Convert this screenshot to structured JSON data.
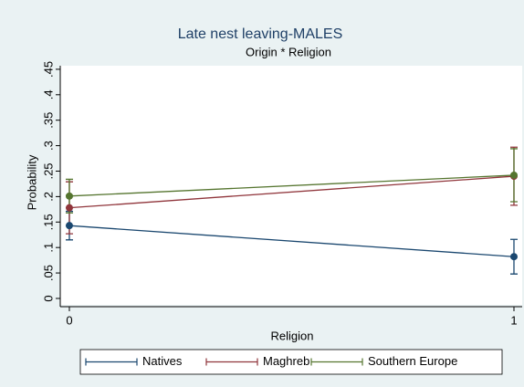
{
  "chart_data": {
    "type": "line-errorbar",
    "title": "Late nest leaving-MALES",
    "subtitle": "Origin * Religion",
    "x_label": "Religion",
    "y_label": "Probability",
    "x": [
      0,
      1
    ],
    "xlim": [
      -0.0205,
      1.0185
    ],
    "xticks": [
      0,
      1
    ],
    "ylim": [
      -0.0126,
      0.457
    ],
    "yticks": [
      0,
      {
        "value": 0.05,
        "label": ".05"
      },
      {
        "value": 0.1,
        "label": ".1"
      },
      {
        "value": 0.15,
        "label": ".15"
      },
      {
        "value": 0.2,
        "label": ".2"
      },
      {
        "value": 0.25,
        "label": ".25"
      },
      {
        "value": 0.3,
        "label": ".3"
      },
      {
        "value": 0.35,
        "label": ".35"
      },
      {
        "value": 0.4,
        "label": ".4"
      },
      {
        "value": 0.45,
        "label": ".45"
      }
    ],
    "grid": false,
    "legend": "bottom",
    "series": [
      {
        "name": "Natives",
        "color": "#1a476f",
        "values": [
          0.143,
          0.082
        ],
        "lower": [
          0.115,
          0.048
        ],
        "upper": [
          0.171,
          0.116
        ]
      },
      {
        "name": "Maghreb",
        "color": "#90353b",
        "values": [
          0.178,
          0.24
        ],
        "lower": [
          0.127,
          0.183
        ],
        "upper": [
          0.229,
          0.297
        ]
      },
      {
        "name": "Southern Europe",
        "color": "#55752f",
        "values": [
          0.201,
          0.242
        ],
        "lower": [
          0.168,
          0.19
        ],
        "upper": [
          0.234,
          0.294
        ]
      }
    ]
  }
}
